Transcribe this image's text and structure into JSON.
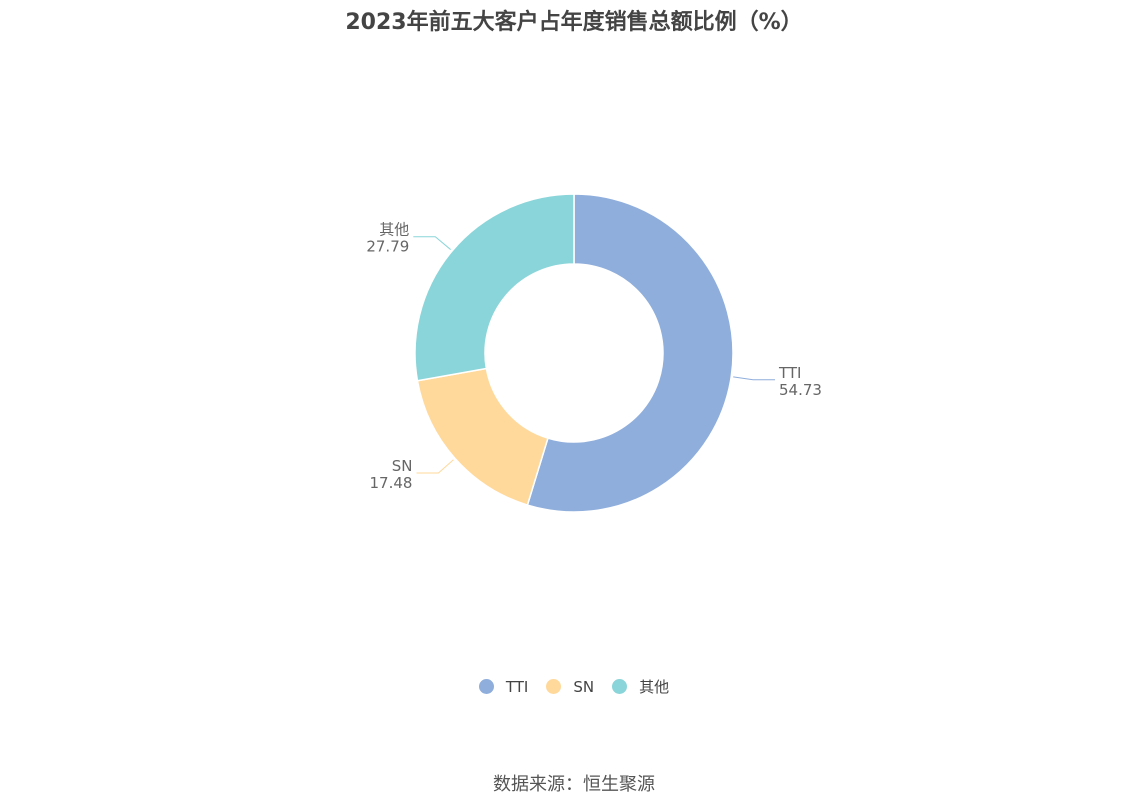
{
  "title": "2023年前五大客户占年度销售总额比例（%）",
  "source": "数据来源：恒生聚源",
  "chart_data": {
    "type": "pie",
    "title": "2023年前五大客户占年度销售总额比例（%）",
    "donut": true,
    "legend_position": "bottom",
    "slices": [
      {
        "name": "TTI",
        "value": 54.73,
        "label": "54.73",
        "color": "#8FAEDC"
      },
      {
        "name": "SN",
        "value": 17.48,
        "label": "17.48",
        "color": "#FFD99B"
      },
      {
        "name": "其他",
        "value": 27.79,
        "label": "27.79",
        "color": "#8AD5D9"
      }
    ]
  }
}
